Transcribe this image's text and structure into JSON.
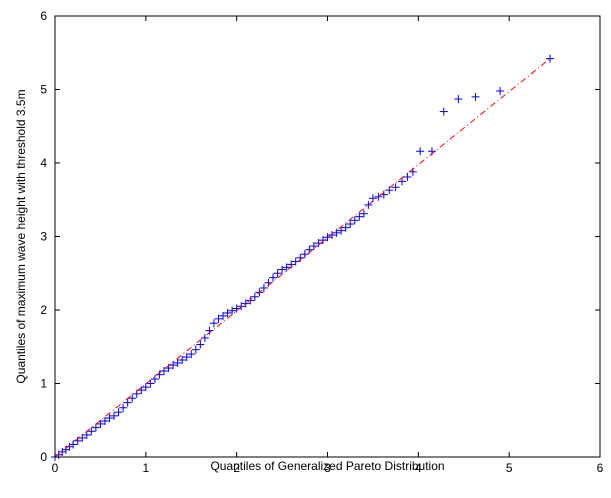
{
  "chart_data": {
    "type": "scatter",
    "title": "",
    "xlabel": "Quantiles of Generalized Pareto Distribution",
    "ylabel": "Quantiles of maximum wave height with threshold 3.5m",
    "xlim": [
      0,
      6
    ],
    "ylim": [
      0,
      6
    ],
    "x_ticks": [
      "0",
      "1",
      "2",
      "3",
      "4",
      "5",
      "6"
    ],
    "y_ticks": [
      "0",
      "1",
      "2",
      "3",
      "4",
      "5",
      "6"
    ],
    "grid": false,
    "legend": "none",
    "series": [
      {
        "marker": "plus",
        "color": "#0000ff",
        "points": [
          [
            0.0,
            0.0
          ],
          [
            0.04,
            0.03
          ],
          [
            0.08,
            0.07
          ],
          [
            0.12,
            0.1
          ],
          [
            0.16,
            0.14
          ],
          [
            0.2,
            0.17
          ],
          [
            0.25,
            0.22
          ],
          [
            0.3,
            0.26
          ],
          [
            0.35,
            0.3
          ],
          [
            0.4,
            0.35
          ],
          [
            0.45,
            0.4
          ],
          [
            0.5,
            0.45
          ],
          [
            0.55,
            0.49
          ],
          [
            0.6,
            0.53
          ],
          [
            0.65,
            0.56
          ],
          [
            0.7,
            0.61
          ],
          [
            0.75,
            0.67
          ],
          [
            0.8,
            0.74
          ],
          [
            0.85,
            0.8
          ],
          [
            0.9,
            0.86
          ],
          [
            0.95,
            0.91
          ],
          [
            1.0,
            0.95
          ],
          [
            1.05,
            1.0
          ],
          [
            1.1,
            1.06
          ],
          [
            1.15,
            1.12
          ],
          [
            1.2,
            1.17
          ],
          [
            1.25,
            1.21
          ],
          [
            1.3,
            1.25
          ],
          [
            1.35,
            1.28
          ],
          [
            1.4,
            1.32
          ],
          [
            1.45,
            1.36
          ],
          [
            1.5,
            1.4
          ],
          [
            1.55,
            1.46
          ],
          [
            1.6,
            1.53
          ],
          [
            1.65,
            1.62
          ],
          [
            1.7,
            1.72
          ],
          [
            1.75,
            1.82
          ],
          [
            1.8,
            1.88
          ],
          [
            1.85,
            1.92
          ],
          [
            1.9,
            1.96
          ],
          [
            1.95,
            1.99
          ],
          [
            2.0,
            2.02
          ],
          [
            2.05,
            2.05
          ],
          [
            2.1,
            2.09
          ],
          [
            2.15,
            2.13
          ],
          [
            2.2,
            2.18
          ],
          [
            2.25,
            2.24
          ],
          [
            2.3,
            2.3
          ],
          [
            2.35,
            2.37
          ],
          [
            2.4,
            2.44
          ],
          [
            2.45,
            2.5
          ],
          [
            2.5,
            2.55
          ],
          [
            2.55,
            2.58
          ],
          [
            2.6,
            2.62
          ],
          [
            2.65,
            2.66
          ],
          [
            2.7,
            2.71
          ],
          [
            2.75,
            2.76
          ],
          [
            2.8,
            2.82
          ],
          [
            2.85,
            2.87
          ],
          [
            2.9,
            2.91
          ],
          [
            2.95,
            2.95
          ],
          [
            3.0,
            2.99
          ],
          [
            3.05,
            3.02
          ],
          [
            3.1,
            3.05
          ],
          [
            3.15,
            3.08
          ],
          [
            3.2,
            3.12
          ],
          [
            3.25,
            3.17
          ],
          [
            3.3,
            3.22
          ],
          [
            3.35,
            3.27
          ],
          [
            3.4,
            3.31
          ],
          [
            3.45,
            3.43
          ],
          [
            3.5,
            3.52
          ],
          [
            3.56,
            3.54
          ],
          [
            3.62,
            3.57
          ],
          [
            3.68,
            3.63
          ],
          [
            3.75,
            3.67
          ],
          [
            3.82,
            3.75
          ],
          [
            3.88,
            3.81
          ],
          [
            3.94,
            3.88
          ],
          [
            4.02,
            4.16
          ],
          [
            4.15,
            4.16
          ],
          [
            4.28,
            4.7
          ],
          [
            4.44,
            4.87
          ],
          [
            4.63,
            4.9
          ],
          [
            4.9,
            4.98
          ],
          [
            5.45,
            5.42
          ]
        ]
      },
      {
        "type": "line",
        "style": "dash-dot",
        "color": "#ff0000",
        "x": [
          0,
          5.45
        ],
        "y": [
          0,
          5.42
        ]
      }
    ]
  }
}
